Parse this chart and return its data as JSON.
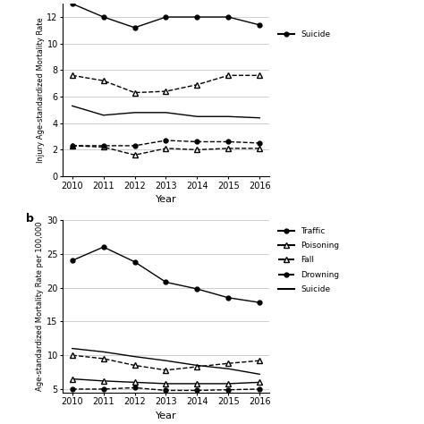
{
  "years": [
    2010,
    2011,
    2012,
    2013,
    2014,
    2015,
    2016
  ],
  "panel_a": {
    "suicide": [
      13.0,
      12.0,
      11.2,
      12.0,
      12.0,
      12.0,
      11.4
    ],
    "fall": [
      7.6,
      7.2,
      6.3,
      6.4,
      6.9,
      7.6,
      7.6
    ],
    "drowning": [
      5.3,
      4.6,
      4.8,
      4.8,
      4.5,
      4.5,
      4.4
    ],
    "poisoning": [
      2.3,
      2.3,
      2.3,
      2.7,
      2.6,
      2.6,
      2.5
    ],
    "traffic": [
      2.3,
      2.2,
      1.6,
      2.1,
      2.0,
      2.1,
      2.1
    ],
    "ylabel": "Injury Age-standardized Mortality Rate",
    "xlabel": "Year",
    "ylim": [
      0,
      13
    ],
    "yticks": [
      0,
      2,
      4,
      6,
      8,
      10,
      12
    ]
  },
  "panel_b": {
    "traffic": [
      24.0,
      26.0,
      23.8,
      20.8,
      19.8,
      18.5,
      17.8
    ],
    "fall": [
      10.0,
      9.5,
      8.5,
      7.8,
      8.3,
      8.8,
      9.2
    ],
    "poisoning": [
      6.5,
      6.2,
      6.0,
      5.8,
      5.8,
      5.8,
      6.0
    ],
    "drowning": [
      5.0,
      5.0,
      5.2,
      4.8,
      4.8,
      4.9,
      5.0
    ],
    "suicide": [
      11.0,
      10.5,
      9.8,
      9.2,
      8.5,
      8.0,
      7.2
    ],
    "ylabel": "Age-standardized Mortality Rate per 100,000",
    "xlabel": "Year",
    "ylim": [
      4.5,
      30
    ],
    "yticks": [
      5,
      10,
      15,
      20,
      25,
      30
    ]
  },
  "bg_color": "white",
  "grid_color": "#d0d0d0"
}
